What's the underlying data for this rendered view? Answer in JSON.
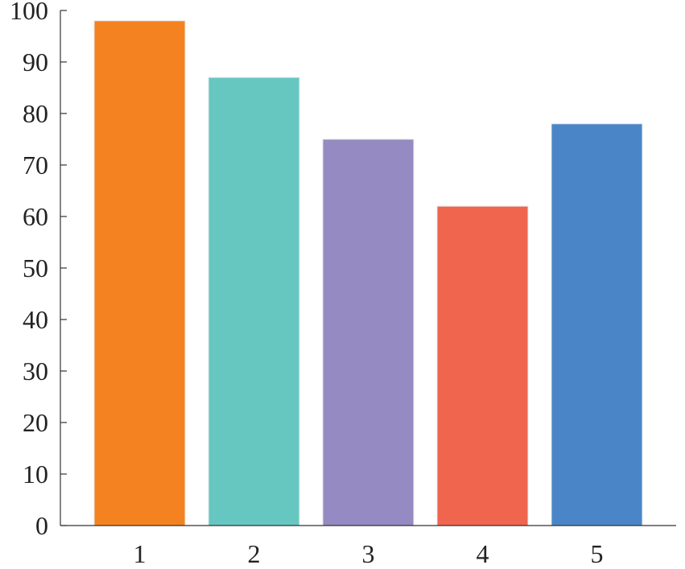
{
  "chart_data": {
    "type": "bar",
    "title": "",
    "xlabel": "",
    "ylabel": "",
    "categories": [
      "1",
      "2",
      "3",
      "4",
      "5"
    ],
    "values": [
      98,
      87,
      75,
      62,
      78
    ],
    "colors": [
      "#F58220",
      "#66C7C1",
      "#958BC2",
      "#F0654D",
      "#4A86C7"
    ],
    "ylim": [
      0,
      100
    ],
    "yticks": [
      0,
      10,
      20,
      30,
      40,
      50,
      60,
      70,
      80,
      90,
      100
    ],
    "grid": false,
    "legend": "none"
  }
}
